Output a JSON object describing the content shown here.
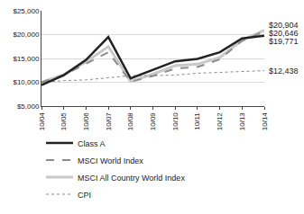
{
  "chart_data": {
    "type": "line",
    "categories": [
      "10/04",
      "10/05",
      "10/06",
      "10/07",
      "10/08",
      "10/09",
      "10/10",
      "10/11",
      "10/12",
      "10/13",
      "10/14"
    ],
    "series": [
      {
        "name": "Class A",
        "color": "#222222",
        "line_style": "solid",
        "values": [
          9425,
          11500,
          14700,
          19500,
          10800,
          12600,
          14400,
          14900,
          16300,
          19200,
          19771
        ],
        "value_labels": [
          null,
          null,
          null,
          null,
          null,
          null,
          null,
          null,
          null,
          null,
          "$19,771"
        ]
      },
      {
        "name": "MSCI World Index",
        "color": "#8c8c8c",
        "line_style": "dash",
        "values": [
          10000,
          11500,
          13900,
          16300,
          10100,
          11300,
          12900,
          13200,
          14800,
          18700,
          20646
        ],
        "value_labels": [
          null,
          null,
          null,
          null,
          null,
          null,
          null,
          null,
          null,
          null,
          "$20,646"
        ]
      },
      {
        "name": "MSCI All Country World Index",
        "color": "#c8c8c8",
        "line_style": "solid",
        "values": [
          10000,
          11600,
          14300,
          17500,
          10200,
          11700,
          13500,
          13800,
          15200,
          18800,
          20904
        ],
        "value_labels": [
          null,
          null,
          null,
          null,
          null,
          null,
          null,
          null,
          null,
          null,
          "$20,904"
        ]
      },
      {
        "name": "CPI",
        "color": "#888888",
        "line_style": "dot",
        "values": [
          10000,
          10350,
          10500,
          10900,
          11400,
          11400,
          11500,
          11900,
          12100,
          12300,
          12438
        ],
        "value_labels": [
          null,
          null,
          null,
          null,
          null,
          null,
          null,
          null,
          null,
          null,
          "$12,438"
        ]
      }
    ],
    "ylim": [
      5000,
      25000
    ],
    "yticks": [
      {
        "value": 5000,
        "label": "$5,000"
      },
      {
        "value": 10000,
        "label": "$10,000"
      },
      {
        "value": 15000,
        "label": "$15,000"
      },
      {
        "value": 20000,
        "label": "$20,000"
      },
      {
        "value": 25000,
        "label": "$25,000"
      }
    ],
    "grid": true,
    "legend": "bottom"
  }
}
